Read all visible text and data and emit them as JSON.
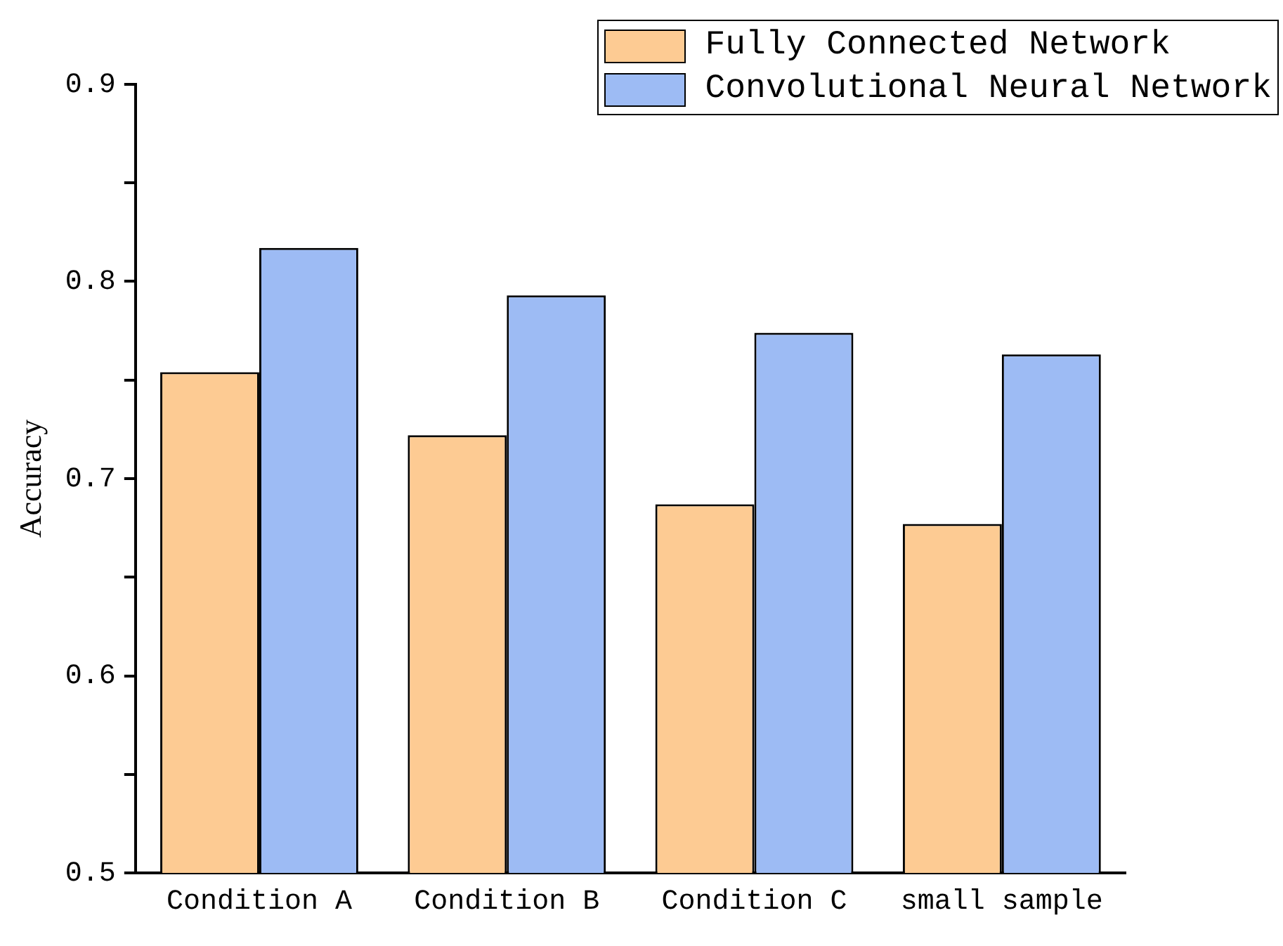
{
  "chart_data": {
    "type": "bar",
    "ylabel": "Accuracy",
    "categories": [
      "Condition A",
      "Condition B",
      "Condition C",
      "small sample"
    ],
    "series": [
      {
        "name": "Fully Connected Network",
        "color": "#fdcb93",
        "values": [
          0.754,
          0.722,
          0.687,
          0.677
        ]
      },
      {
        "name": "Convolutional Neural Network",
        "color": "#9dbbf4",
        "values": [
          0.817,
          0.793,
          0.774,
          0.763
        ]
      }
    ],
    "ylim": [
      0.5,
      0.9
    ],
    "yticks": [
      0.5,
      {
        "value": 0.55,
        "label": null
      },
      0.6,
      {
        "value": 0.65,
        "label": null
      },
      0.7,
      {
        "value": 0.75,
        "label": null
      },
      0.8,
      {
        "value": 0.85,
        "label": null
      },
      0.9
    ],
    "grid": false,
    "legend": "top right"
  }
}
